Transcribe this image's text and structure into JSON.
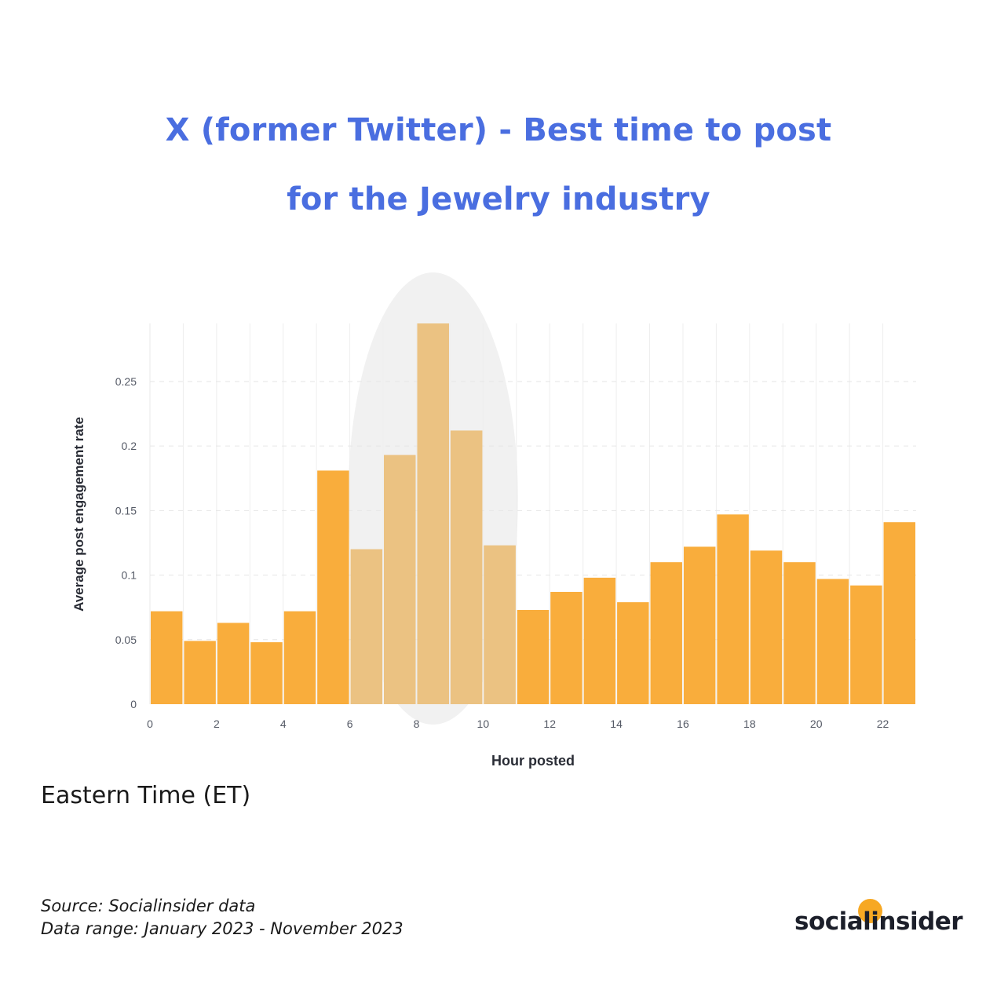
{
  "title_line1": "X (former Twitter) - Best time to post",
  "title_line2": "for the Jewelry industry",
  "timezone_note": "Eastern Time (ET)",
  "source_line": "Source: Socialinsider data",
  "range_line": "Data range: January 2023 - November 2023",
  "logo_text": "socialinsider",
  "colors": {
    "title": "#4a6ee0",
    "bar": "#f9ad3c",
    "bar_highlight": "#ebc282",
    "highlight_ellipse": "#eeeeee"
  },
  "chart_data": {
    "type": "bar",
    "xlabel": "Hour posted",
    "ylabel": "Average post engagement rate",
    "x_ticks": [
      "0",
      "2",
      "4",
      "6",
      "8",
      "10",
      "12",
      "14",
      "16",
      "18",
      "20",
      "22"
    ],
    "y_ticks": [
      "0",
      "0.05",
      "0.1",
      "0.15",
      "0.2",
      "0.25"
    ],
    "xlim": [
      0,
      23
    ],
    "ylim": [
      0,
      0.295
    ],
    "grid": true,
    "highlight_hours": [
      6,
      7,
      8,
      9,
      10
    ],
    "bars": [
      {
        "hour": 0,
        "value": 0.072
      },
      {
        "hour": 1,
        "value": 0.049
      },
      {
        "hour": 2,
        "value": 0.063
      },
      {
        "hour": 3,
        "value": 0.048
      },
      {
        "hour": 4,
        "value": 0.072
      },
      {
        "hour": 5,
        "value": 0.181
      },
      {
        "hour": 6,
        "value": 0.12
      },
      {
        "hour": 7,
        "value": 0.193
      },
      {
        "hour": 8,
        "value": 0.295
      },
      {
        "hour": 9,
        "value": 0.212
      },
      {
        "hour": 10,
        "value": 0.123
      },
      {
        "hour": 11,
        "value": 0.073
      },
      {
        "hour": 12,
        "value": 0.087
      },
      {
        "hour": 13,
        "value": 0.098
      },
      {
        "hour": 14,
        "value": 0.079
      },
      {
        "hour": 15,
        "value": 0.11
      },
      {
        "hour": 16,
        "value": 0.122
      },
      {
        "hour": 17,
        "value": 0.147
      },
      {
        "hour": 18,
        "value": 0.119
      },
      {
        "hour": 19,
        "value": 0.11
      },
      {
        "hour": 20,
        "value": 0.097
      },
      {
        "hour": 21,
        "value": 0.092
      },
      {
        "hour": 22,
        "value": 0.141
      }
    ]
  }
}
